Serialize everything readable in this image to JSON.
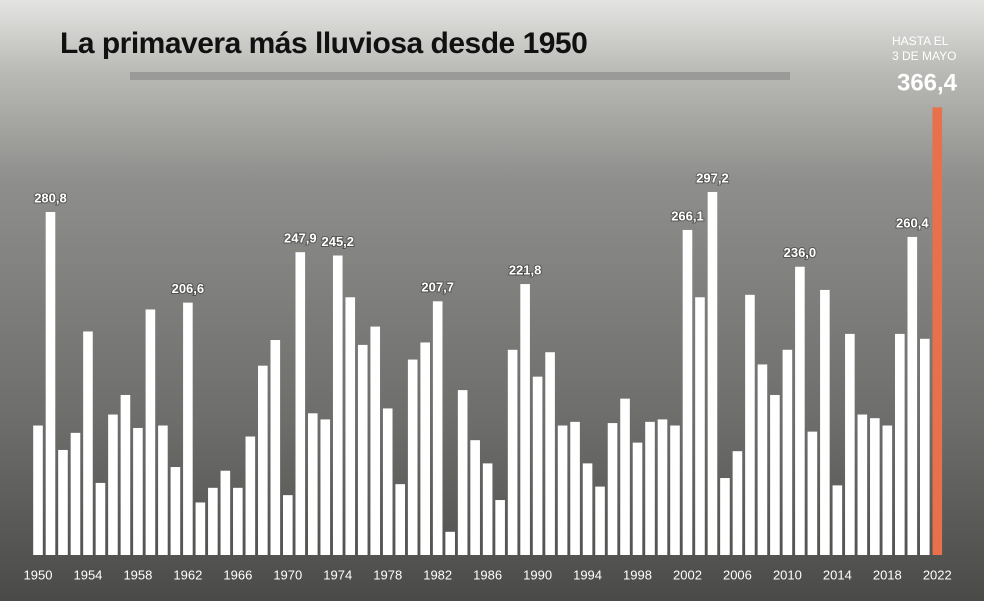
{
  "chart_data": {
    "type": "bar",
    "title": "La primavera más lluviosa desde 1950",
    "annotation": [
      "HASTA EL",
      "3 DE MAYO"
    ],
    "categories": [
      "1950",
      null,
      null,
      null,
      "1954",
      null,
      null,
      null,
      "1958",
      null,
      null,
      null,
      "1962",
      null,
      null,
      null,
      "1966",
      null,
      null,
      null,
      "1970",
      null,
      null,
      null,
      "1974",
      null,
      null,
      null,
      "1978",
      null,
      null,
      null,
      "1982",
      null,
      null,
      null,
      "1986",
      null,
      null,
      null,
      "1990",
      null,
      null,
      null,
      "1994",
      null,
      null,
      null,
      "1998",
      null,
      null,
      null,
      "2002",
      null,
      null,
      null,
      "2006",
      null,
      null,
      null,
      "2010",
      null,
      null,
      null,
      "2014",
      null,
      null,
      null,
      "2018",
      null,
      null,
      null,
      "2022"
    ],
    "values": [
      106,
      280.8,
      86,
      100,
      183,
      59,
      115,
      131,
      104,
      201,
      106,
      72,
      206.6,
      43,
      55,
      69,
      55,
      97,
      155,
      176,
      49,
      247.9,
      116,
      111,
      245.2,
      211,
      172,
      187,
      120,
      58,
      160,
      174,
      207.7,
      19,
      135,
      94,
      75,
      45,
      168,
      221.8,
      146,
      166,
      106,
      109,
      75,
      56,
      108,
      128,
      92,
      109,
      111,
      106,
      266.1,
      211,
      297.2,
      63,
      85,
      213,
      156,
      131,
      168,
      236.0,
      101,
      217,
      57,
      181,
      115,
      112,
      106,
      181,
      260.4,
      177,
      366.4
    ],
    "value_labels": [
      null,
      "280,8",
      null,
      null,
      null,
      null,
      null,
      null,
      null,
      null,
      null,
      null,
      "206,6",
      null,
      null,
      null,
      null,
      null,
      null,
      null,
      null,
      "247,9",
      null,
      null,
      "245,2",
      null,
      null,
      null,
      null,
      null,
      null,
      null,
      "207,7",
      null,
      null,
      null,
      null,
      null,
      null,
      "221,8",
      null,
      null,
      null,
      null,
      null,
      null,
      null,
      null,
      null,
      null,
      null,
      null,
      "266,1",
      null,
      "297,2",
      null,
      null,
      null,
      null,
      null,
      null,
      "236,0",
      null,
      null,
      null,
      null,
      null,
      null,
      null,
      null,
      "260,4",
      null,
      "366,4"
    ],
    "color": "#ffffff",
    "last_color": "#e8704a",
    "ylim": [
      0,
      400
    ]
  }
}
